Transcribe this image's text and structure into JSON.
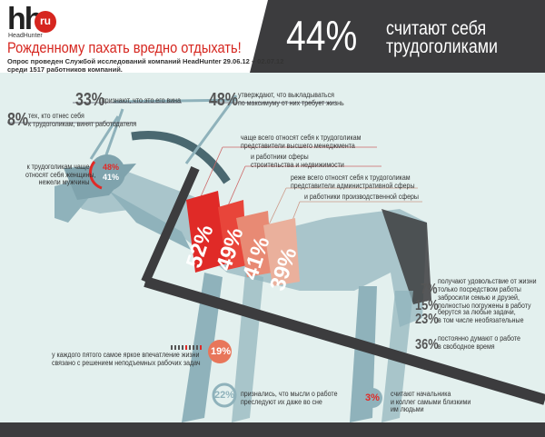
{
  "logo": {
    "brand": "hh",
    "domain": "ru",
    "tagline": "HeadHunter"
  },
  "header": {
    "title": "Рожденному пахать вредно отдыхать!",
    "subtitle_line1": "Опрос проведен Службой исследований компаний HeadHunter 29.06.12 – 02.07.12",
    "subtitle_line2": "среди 1517 работников компаний."
  },
  "banner": {
    "percent": "44%",
    "text_line1": "считают себя",
    "text_line2": "трудоголиками"
  },
  "colors": {
    "red": "#e02a27",
    "dark": "#3c3c3e",
    "horse": "#8fb2bb",
    "background": "#e3f0ee"
  },
  "stats": {
    "guilt": {
      "value": "33%",
      "text": "признают, что это его вина"
    },
    "employer": {
      "value": "8%",
      "text_line1": "тех, кто отнес себя",
      "text_line2": "к трудоголикам, винят работодателя"
    },
    "max": {
      "value": "48%",
      "text_line1": "утверждают, что выкладываться",
      "text_line2": "по максимуму от них требует жизнь"
    },
    "gender": {
      "text_line1": "к трудоголикам чаще",
      "text_line2": "относят себя женщины,",
      "text_line3": "нежели мужчины",
      "women": "48%",
      "men": "41%"
    },
    "sectors": [
      {
        "value": "52%",
        "text_line1": "чаще всего относят себя к трудоголикам",
        "text_line2": "представители высшего менеджмента"
      },
      {
        "value": "49%",
        "text_line1": "и работники сферы",
        "text_line2": "строительства и недвижимости"
      },
      {
        "value": "41%",
        "text_line1": "реже всего относят себя к трудоголикам",
        "text_line2": "представители административной сферы"
      },
      {
        "value": "39%",
        "text_line1": "и работники производственной сферы",
        "text_line2": ""
      }
    ],
    "right": [
      {
        "value": "7%",
        "text_line1": "получают удовольствие от жизни",
        "text_line2": "только посредством работы"
      },
      {
        "value": "15%",
        "text_line1": "забросили семью и друзей,",
        "text_line2": "полностью погружены в работу"
      },
      {
        "value": "23%",
        "text_line1": "берутся за любые задачи,",
        "text_line2": "в том числе необязательные"
      },
      {
        "value": "36%",
        "text_line1": "постоянно думают о работе",
        "text_line2": "в свободное время"
      }
    ],
    "fifth": {
      "value": "19%",
      "text_line1": "у каждого пятого самое яркое впечатление жизни",
      "text_line2": "связано с решением неподъемных рабочих задач"
    },
    "dreams": {
      "value": "22%",
      "text_line1": "признались, что мысли о работе",
      "text_line2": "преследуют их даже во сне"
    },
    "colleagues": {
      "value": "3%",
      "text_line1": "считают начальника",
      "text_line2": "и коллег самыми близкими",
      "text_line3": "им людьми"
    }
  }
}
